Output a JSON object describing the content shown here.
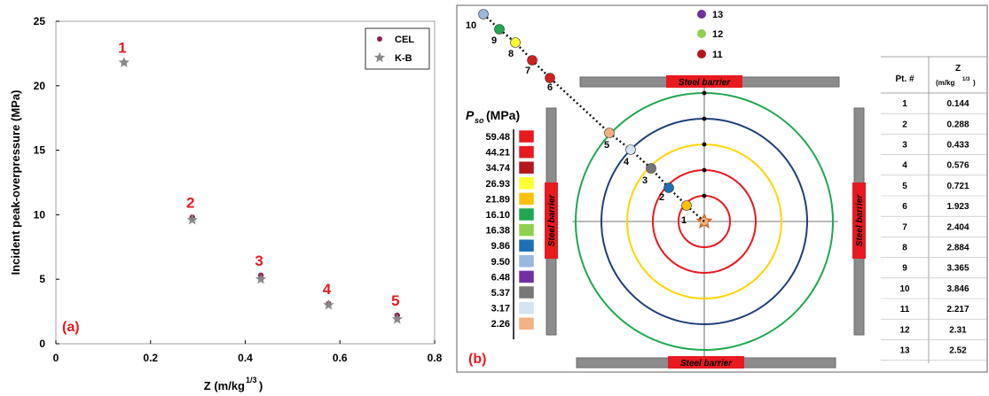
{
  "chart_data": [
    {
      "type": "scatter",
      "panel_label": "(a)",
      "xlabel": "Z (m/kg",
      "xlabel_exp": "1/3",
      "xlabel_close": ")",
      "ylabel": "Incident peak-overpressure (MPa)",
      "xlim": [
        0,
        0.8
      ],
      "ylim": [
        0,
        25
      ],
      "xticks": [
        "0",
        "0.2",
        "0.4",
        "0.6",
        "0.8"
      ],
      "yticks": [
        "0",
        "5",
        "10",
        "15",
        "20",
        "25"
      ],
      "legend_position": "top-right",
      "series": [
        {
          "name": "CEL",
          "marker": "dot",
          "color": "#8b2252",
          "x": [
            0.144,
            0.288,
            0.433,
            0.576,
            0.721
          ],
          "y": [
            21.8,
            9.8,
            5.3,
            3.1,
            2.2
          ]
        },
        {
          "name": "K-B",
          "marker": "star",
          "color": "#888888",
          "x": [
            0.144,
            0.288,
            0.433,
            0.576,
            0.721
          ],
          "y": [
            21.8,
            9.6,
            5.0,
            3.0,
            1.9
          ]
        }
      ],
      "point_labels": [
        "1",
        "2",
        "3",
        "4",
        "5"
      ],
      "label_color": "#e8191f"
    },
    {
      "type": "diagram",
      "panel_label": "(b)",
      "barrier_label": "Steel barrier",
      "colorbar_title": "P",
      "colorbar_title_sub": "so",
      "colorbar_units": " (MPa)",
      "colorbar_values": [
        "59.48",
        "44.21",
        "34.74",
        "26.93",
        "21.89",
        "16.10",
        "16.38",
        "9.86",
        "9.50",
        "6.48",
        "5.37",
        "3.17",
        "2.26"
      ],
      "colorbar_colors": [
        "#e8191f",
        "#e8191f",
        "#b4161b",
        "#ffff33",
        "#ffc107",
        "#1fa84f",
        "#8fd14f",
        "#1f6fb5",
        "#9ab7df",
        "#7030a0",
        "#777777",
        "#d6e3f0",
        "#f4b183"
      ],
      "ring_colors": [
        "#e8191f",
        "#e8191f",
        "#ffd500",
        "#1f3f7a",
        "#1fa84f"
      ],
      "points": [
        {
          "label": "1",
          "color": "#ffc107"
        },
        {
          "label": "2",
          "color": "#1f6fb5"
        },
        {
          "label": "3",
          "color": "#777777"
        },
        {
          "label": "4",
          "color": "#d6e3f0"
        },
        {
          "label": "5",
          "color": "#f4b183"
        },
        {
          "label": "6",
          "color": "#d02020"
        },
        {
          "label": "7",
          "color": "#d02020"
        },
        {
          "label": "8",
          "color": "#ffff33"
        },
        {
          "label": "9",
          "color": "#1fa84f"
        },
        {
          "label": "10",
          "color": "#9ab7df"
        }
      ],
      "legend_points": [
        {
          "label": "13",
          "color": "#7030a0"
        },
        {
          "label": "12",
          "color": "#8fd14f"
        },
        {
          "label": "11",
          "color": "#b4161b"
        }
      ],
      "table": {
        "header_pt": "Pt. #",
        "header_z": "Z",
        "header_z_units": "(m/kg",
        "header_z_exp": "1/3",
        "header_z_close": ")",
        "rows": [
          [
            "1",
            "0.144"
          ],
          [
            "2",
            "0.288"
          ],
          [
            "3",
            "0.433"
          ],
          [
            "4",
            "0.576"
          ],
          [
            "5",
            "0.721"
          ],
          [
            "6",
            "1.923"
          ],
          [
            "7",
            "2.404"
          ],
          [
            "8",
            "2.884"
          ],
          [
            "9",
            "3.365"
          ],
          [
            "10",
            "3.846"
          ],
          [
            "11",
            "2.217"
          ],
          [
            "12",
            "2.31"
          ],
          [
            "13",
            "2.52"
          ]
        ]
      }
    }
  ]
}
